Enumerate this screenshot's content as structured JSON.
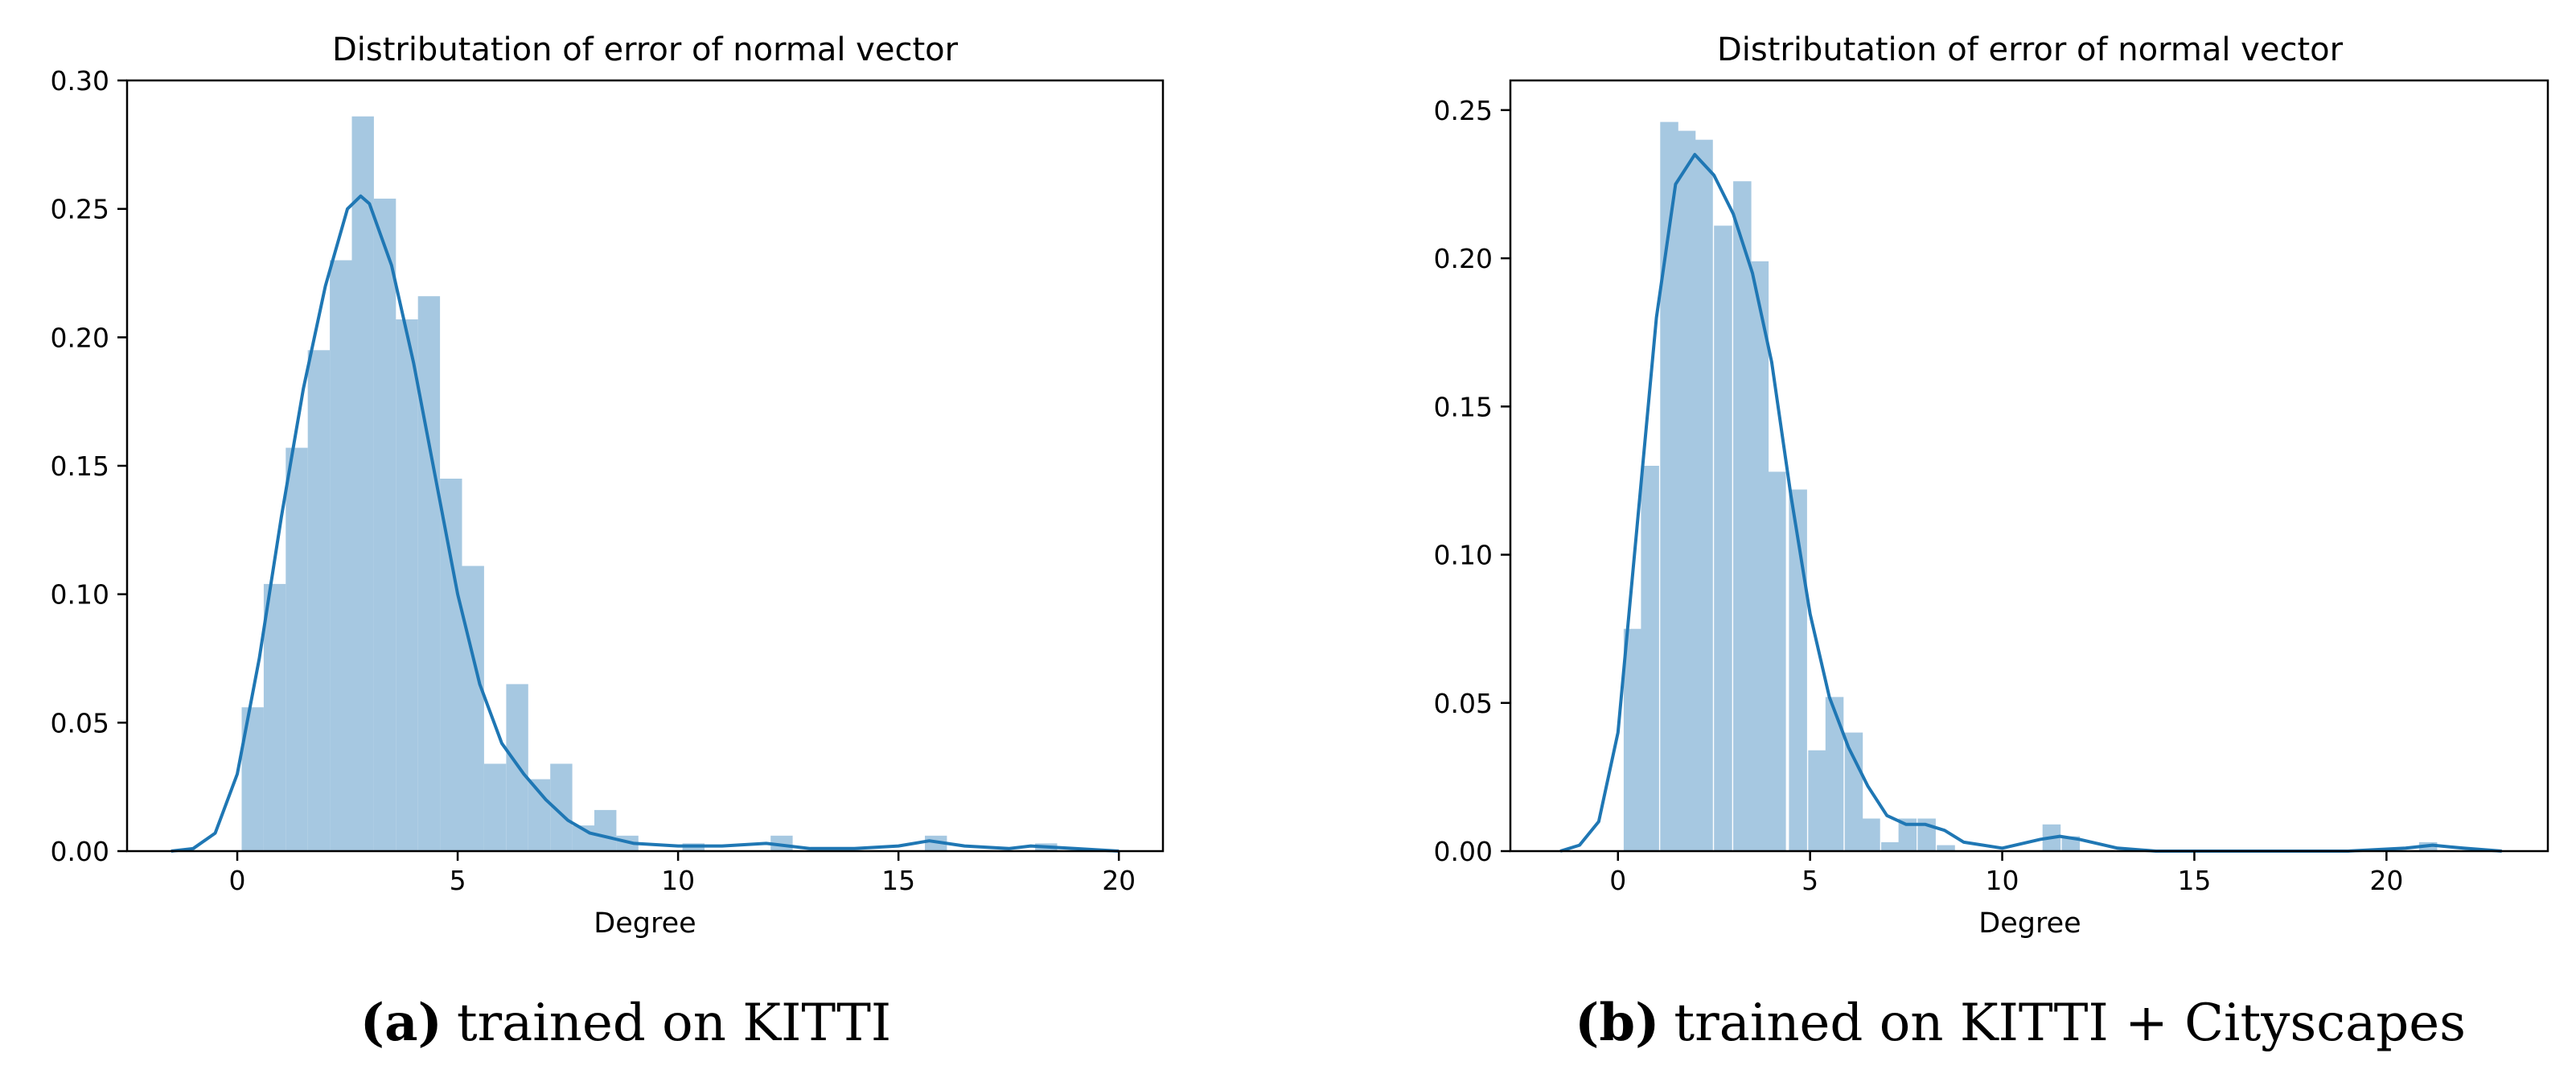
{
  "chart_data": [
    {
      "type": "bar",
      "subtype": "histogram with kde line",
      "title": "Distributation of error of normal vector",
      "xlabel": "Degree",
      "ylabel": "",
      "xlim": [
        -2.5,
        21
      ],
      "ylim": [
        0,
        0.3
      ],
      "xticks": [
        0,
        5,
        10,
        15,
        20
      ],
      "yticks": [
        0.0,
        0.05,
        0.1,
        0.15,
        0.2,
        0.25,
        0.3
      ],
      "ytick_labels": [
        "0.00",
        "0.05",
        "0.10",
        "0.15",
        "0.20",
        "0.25",
        "0.30"
      ],
      "bar_color": "#a6c8e1",
      "line_color": "#1f77b4",
      "caption_letter": "(a)",
      "caption_text": "trained on KITTI",
      "bins": [
        [
          0.1,
          0.056
        ],
        [
          0.6,
          0.104
        ],
        [
          1.1,
          0.157
        ],
        [
          1.6,
          0.195
        ],
        [
          2.1,
          0.23
        ],
        [
          2.6,
          0.286
        ],
        [
          3.1,
          0.254
        ],
        [
          3.6,
          0.207
        ],
        [
          4.1,
          0.216
        ],
        [
          4.6,
          0.145
        ],
        [
          5.1,
          0.111
        ],
        [
          5.6,
          0.034
        ],
        [
          6.1,
          0.065
        ],
        [
          6.6,
          0.028
        ],
        [
          7.1,
          0.034
        ],
        [
          7.6,
          0.01
        ],
        [
          8.1,
          0.016
        ],
        [
          8.6,
          0.006
        ],
        [
          10.1,
          0.003
        ],
        [
          12.1,
          0.006
        ],
        [
          15.6,
          0.006
        ],
        [
          18.1,
          0.003
        ]
      ],
      "bin_width": 0.5,
      "kde": [
        [
          -1.5,
          0.0
        ],
        [
          -1.0,
          0.001
        ],
        [
          -0.5,
          0.007
        ],
        [
          0.0,
          0.03
        ],
        [
          0.5,
          0.075
        ],
        [
          1.0,
          0.13
        ],
        [
          1.5,
          0.18
        ],
        [
          2.0,
          0.22
        ],
        [
          2.5,
          0.25
        ],
        [
          2.8,
          0.255
        ],
        [
          3.0,
          0.252
        ],
        [
          3.5,
          0.228
        ],
        [
          4.0,
          0.19
        ],
        [
          4.5,
          0.145
        ],
        [
          5.0,
          0.1
        ],
        [
          5.5,
          0.065
        ],
        [
          6.0,
          0.042
        ],
        [
          6.5,
          0.03
        ],
        [
          7.0,
          0.02
        ],
        [
          7.5,
          0.012
        ],
        [
          8.0,
          0.007
        ],
        [
          9.0,
          0.003
        ],
        [
          10.0,
          0.002
        ],
        [
          11.0,
          0.002
        ],
        [
          12.0,
          0.003
        ],
        [
          13.0,
          0.001
        ],
        [
          14.0,
          0.001
        ],
        [
          15.0,
          0.002
        ],
        [
          15.7,
          0.004
        ],
        [
          16.5,
          0.002
        ],
        [
          17.5,
          0.001
        ],
        [
          18.0,
          0.002
        ],
        [
          19.0,
          0.001
        ],
        [
          20.0,
          0.0
        ]
      ]
    },
    {
      "type": "bar",
      "subtype": "histogram with kde line",
      "title": "Distributation of error of normal vector",
      "xlabel": "Degree",
      "ylabel": "",
      "xlim": [
        -2.8,
        24.2
      ],
      "ylim": [
        0,
        0.26
      ],
      "xticks": [
        0,
        5,
        10,
        15,
        20
      ],
      "yticks": [
        0.0,
        0.05,
        0.1,
        0.15,
        0.2,
        0.25
      ],
      "ytick_labels": [
        "0.00",
        "0.05",
        "0.10",
        "0.15",
        "0.20",
        "0.25"
      ],
      "bar_color": "#a6c8e1",
      "line_color": "#1f77b4",
      "caption_letter": "(b)",
      "caption_text": "trained on KITTI + Cityscapes",
      "bins": [
        [
          0.15,
          0.075
        ],
        [
          0.6,
          0.13
        ],
        [
          1.1,
          0.246
        ],
        [
          1.55,
          0.243
        ],
        [
          2.0,
          0.24
        ],
        [
          2.5,
          0.211
        ],
        [
          3.0,
          0.226
        ],
        [
          3.45,
          0.199
        ],
        [
          3.9,
          0.128
        ],
        [
          4.45,
          0.122
        ],
        [
          4.95,
          0.034
        ],
        [
          5.4,
          0.052
        ],
        [
          5.9,
          0.04
        ],
        [
          6.35,
          0.011
        ],
        [
          6.85,
          0.003
        ],
        [
          7.3,
          0.011
        ],
        [
          7.8,
          0.011
        ],
        [
          8.3,
          0.002
        ],
        [
          11.05,
          0.009
        ],
        [
          11.55,
          0.005
        ],
        [
          20.85,
          0.003
        ]
      ],
      "bin_width": 0.47,
      "kde": [
        [
          -1.5,
          0.0
        ],
        [
          -1.0,
          0.002
        ],
        [
          -0.5,
          0.01
        ],
        [
          0.0,
          0.04
        ],
        [
          0.5,
          0.11
        ],
        [
          1.0,
          0.18
        ],
        [
          1.5,
          0.225
        ],
        [
          2.0,
          0.235
        ],
        [
          2.5,
          0.228
        ],
        [
          3.0,
          0.215
        ],
        [
          3.5,
          0.195
        ],
        [
          4.0,
          0.165
        ],
        [
          4.5,
          0.12
        ],
        [
          5.0,
          0.08
        ],
        [
          5.5,
          0.052
        ],
        [
          6.0,
          0.035
        ],
        [
          6.5,
          0.022
        ],
        [
          7.0,
          0.012
        ],
        [
          7.5,
          0.009
        ],
        [
          8.0,
          0.009
        ],
        [
          8.5,
          0.007
        ],
        [
          9.0,
          0.003
        ],
        [
          10.0,
          0.001
        ],
        [
          11.0,
          0.004
        ],
        [
          11.5,
          0.005
        ],
        [
          12.0,
          0.004
        ],
        [
          13.0,
          0.001
        ],
        [
          14.0,
          0.0
        ],
        [
          19.0,
          0.0
        ],
        [
          20.5,
          0.001
        ],
        [
          21.2,
          0.002
        ],
        [
          22.0,
          0.001
        ],
        [
          23.0,
          0.0
        ]
      ]
    }
  ]
}
